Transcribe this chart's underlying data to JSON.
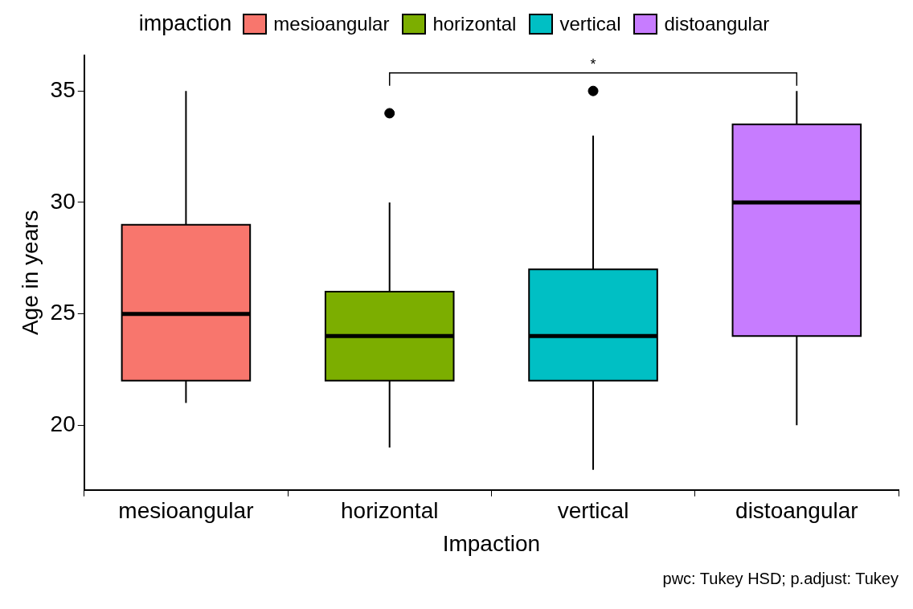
{
  "chart_data": {
    "type": "box",
    "categories": [
      "mesioangular",
      "horizontal",
      "vertical",
      "distoangular"
    ],
    "series": [
      {
        "name": "mesioangular",
        "color": "#f8766d",
        "boxes": [
          {
            "low": 21,
            "q1": 22,
            "median": 25,
            "q3": 29,
            "high": 35
          },
          null,
          null,
          null
        ]
      },
      {
        "name": "horizontal",
        "color": "#7cae00",
        "boxes": [
          null,
          {
            "low": 19,
            "q1": 22,
            "median": 24,
            "q3": 26,
            "high": 30,
            "outliers": [
              34
            ]
          },
          null,
          null
        ]
      },
      {
        "name": "vertical",
        "color": "#00bfc4",
        "boxes": [
          null,
          null,
          {
            "low": 18,
            "q1": 22,
            "median": 24,
            "q3": 27,
            "high": 33,
            "outliers": [
              35
            ]
          },
          null
        ]
      },
      {
        "name": "distoangular",
        "color": "#c77cff",
        "boxes": [
          null,
          null,
          null,
          {
            "low": 20,
            "q1": 24,
            "median": 30,
            "q3": 33.5,
            "high": 35
          }
        ]
      }
    ],
    "xlabel": "Impaction",
    "ylabel": "Age in years",
    "legend_title": "impaction",
    "legend": "top",
    "ylim": [
      17.1,
      36.6
    ],
    "yticks": [
      20,
      25,
      30,
      35
    ],
    "grid": false,
    "annotations": [
      "*",
      "pwc: Tukey HSD; p.adjust: Tukey"
    ]
  }
}
